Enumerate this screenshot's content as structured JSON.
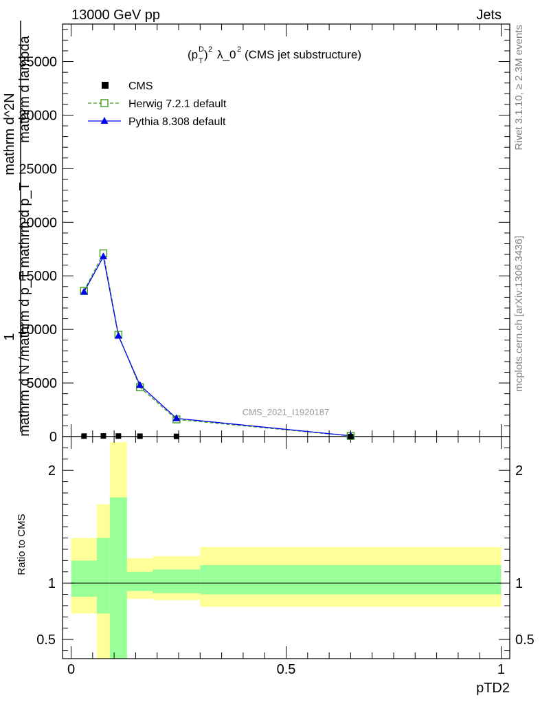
{
  "header": {
    "energy_label": "13000 GeV pp",
    "category_label": "Jets"
  },
  "side_labels": {
    "rivet": "Rivet 3.1.10, ≥ 2.3M events",
    "mcplots": "mcplots.cern.ch [arXiv:1306.3436]"
  },
  "main_ylabel": {
    "one": "1",
    "denominator": "mathrm d N /mathrm d p_T mathrm d p_T",
    "numerator": "mathrm d^2N",
    "numerator2": "mathrm d lambda"
  },
  "colors": {
    "cms": "#000000",
    "herwig": "#3a9a1c",
    "pythia": "#0000ee",
    "band_outer": "#ffff99",
    "band_inner": "#99ff99"
  },
  "chart_data": [
    {
      "type": "line",
      "title": "(p_T^D)^2 λ_0^2 (CMS jet substructure)",
      "xlabel": "pTD2",
      "ylabel": "1 / (mathrm d N /mathrm d p_T) · mathrm d^2N / (mathrm d p_T mathrm d lambda)",
      "xlim": [
        -0.02,
        1.02
      ],
      "ylim": [
        0,
        38500
      ],
      "yticks": [
        0,
        5000,
        10000,
        15000,
        20000,
        25000,
        30000,
        35000
      ],
      "ytick_labels": [
        "0",
        "5000",
        "10000",
        "15000",
        "20000",
        "25000",
        "30000",
        "35000"
      ],
      "watermark": "CMS_2021_I1920187",
      "legend_position": "top-left",
      "series": [
        {
          "name": "CMS",
          "marker": "square",
          "x": [
            0.03,
            0.075,
            0.11,
            0.16,
            0.245,
            0.65
          ],
          "y": [
            45,
            60,
            50,
            35,
            18,
            2
          ]
        },
        {
          "name": "Herwig 7.2.1 default",
          "marker": "open-square",
          "line": "dashed",
          "x": [
            0.03,
            0.075,
            0.11,
            0.16,
            0.245,
            0.65
          ],
          "y": [
            13600,
            17100,
            9500,
            4600,
            1600,
            60
          ]
        },
        {
          "name": "Pythia 8.308 default",
          "marker": "triangle",
          "line": "solid",
          "x": [
            0.03,
            0.075,
            0.11,
            0.16,
            0.245,
            0.65
          ],
          "y": [
            13500,
            16800,
            9400,
            4800,
            1700,
            70
          ]
        }
      ]
    },
    {
      "type": "area",
      "title": "",
      "xlabel": "pTD2",
      "ylabel": "Ratio to CMS",
      "xlim": [
        -0.02,
        1.02
      ],
      "ylim": [
        0.33,
        2.3
      ],
      "yticks": [
        0.5,
        1,
        2
      ],
      "ytick_labels": [
        "0.5",
        "1",
        "2"
      ],
      "xticks": [
        0,
        0.5,
        1
      ],
      "xtick_labels": [
        "0",
        "0.5",
        "1"
      ],
      "bins": [
        {
          "x0": 0.0,
          "x1": 0.06,
          "inner": [
            0.88,
            1.2
          ],
          "outer": [
            0.73,
            1.4
          ]
        },
        {
          "x0": 0.06,
          "x1": 0.09,
          "inner": [
            0.73,
            1.4
          ],
          "outer": [
            0.33,
            1.7
          ]
        },
        {
          "x0": 0.09,
          "x1": 0.13,
          "inner": [
            0.33,
            1.76
          ],
          "outer": [
            0.33,
            2.25
          ]
        },
        {
          "x0": 0.13,
          "x1": 0.19,
          "inner": [
            0.93,
            1.1
          ],
          "outer": [
            0.86,
            1.22
          ]
        },
        {
          "x0": 0.19,
          "x1": 0.3,
          "inner": [
            0.91,
            1.12
          ],
          "outer": [
            0.85,
            1.24
          ]
        },
        {
          "x0": 0.3,
          "x1": 1.0,
          "inner": [
            0.9,
            1.16
          ],
          "outer": [
            0.79,
            1.32
          ]
        }
      ],
      "reference_line": 1
    }
  ]
}
